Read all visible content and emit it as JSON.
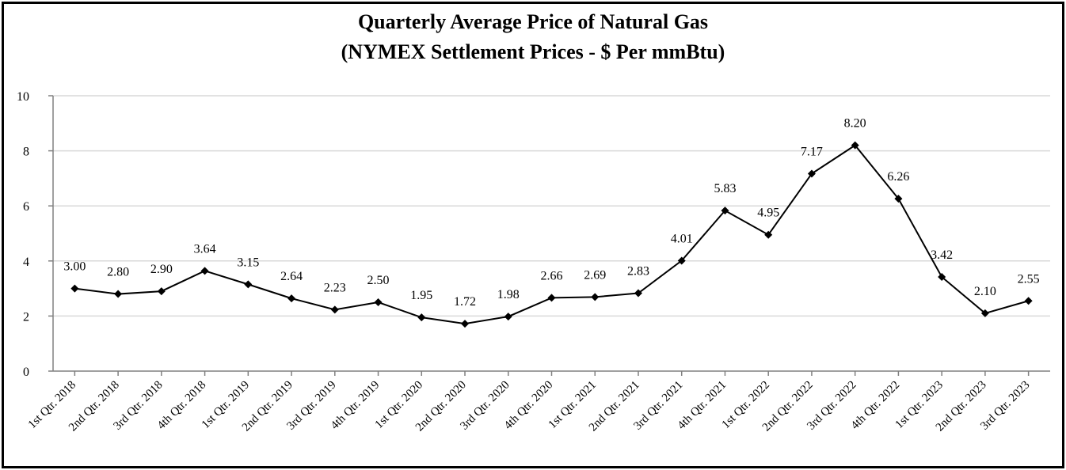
{
  "chart_data": {
    "type": "line",
    "title_lines": [
      "Quarterly Average Price of Natural Gas",
      "(NYMEX Settlement Prices - $ Per mmBtu)"
    ],
    "xlabel": "",
    "ylabel": "",
    "ylim": [
      0,
      10
    ],
    "yticks": [
      0,
      2,
      4,
      6,
      8,
      10
    ],
    "grid": true,
    "legend": "none",
    "line_color": "#000000",
    "grid_color": "#d9d9d9",
    "marker": "diamond",
    "categories": [
      "1st Qtr. 2018",
      "2nd Qtr. 2018",
      "3rd Qtr. 2018",
      "4th Qtr. 2018",
      "1st Qtr. 2019",
      "2nd Qtr. 2019",
      "3rd Qtr. 2019",
      "4th Qtr. 2019",
      "1st Qtr. 2020",
      "2nd Qtr. 2020",
      "3rd Qtr. 2020",
      "4th Qtr. 2020",
      "1st Qtr. 2021",
      "2nd Qtr. 2021",
      "3rd Qtr. 2021",
      "4th Qtr. 2021",
      "1st Qtr. 2022",
      "2nd Qtr. 2022",
      "3rd Qtr. 2022",
      "4th Qtr. 2022",
      "1st Qtr. 2023",
      "2nd Qtr. 2023",
      "3rd Qtr. 2023"
    ],
    "values": [
      3.0,
      2.8,
      2.9,
      3.64,
      3.15,
      2.64,
      2.23,
      2.5,
      1.95,
      1.72,
      1.98,
      2.66,
      2.69,
      2.83,
      4.01,
      5.83,
      4.95,
      7.17,
      8.2,
      6.26,
      3.42,
      2.1,
      2.55
    ],
    "data_labels": [
      "3.00",
      "2.80",
      "2.90",
      "3.64",
      "3.15",
      "2.64",
      "2.23",
      "2.50",
      "1.95",
      "1.72",
      "1.98",
      "2.66",
      "2.69",
      "2.83",
      "4.01",
      "5.83",
      "4.95",
      "7.17",
      "8.20",
      "6.26",
      "3.42",
      "2.10",
      "2.55"
    ]
  }
}
